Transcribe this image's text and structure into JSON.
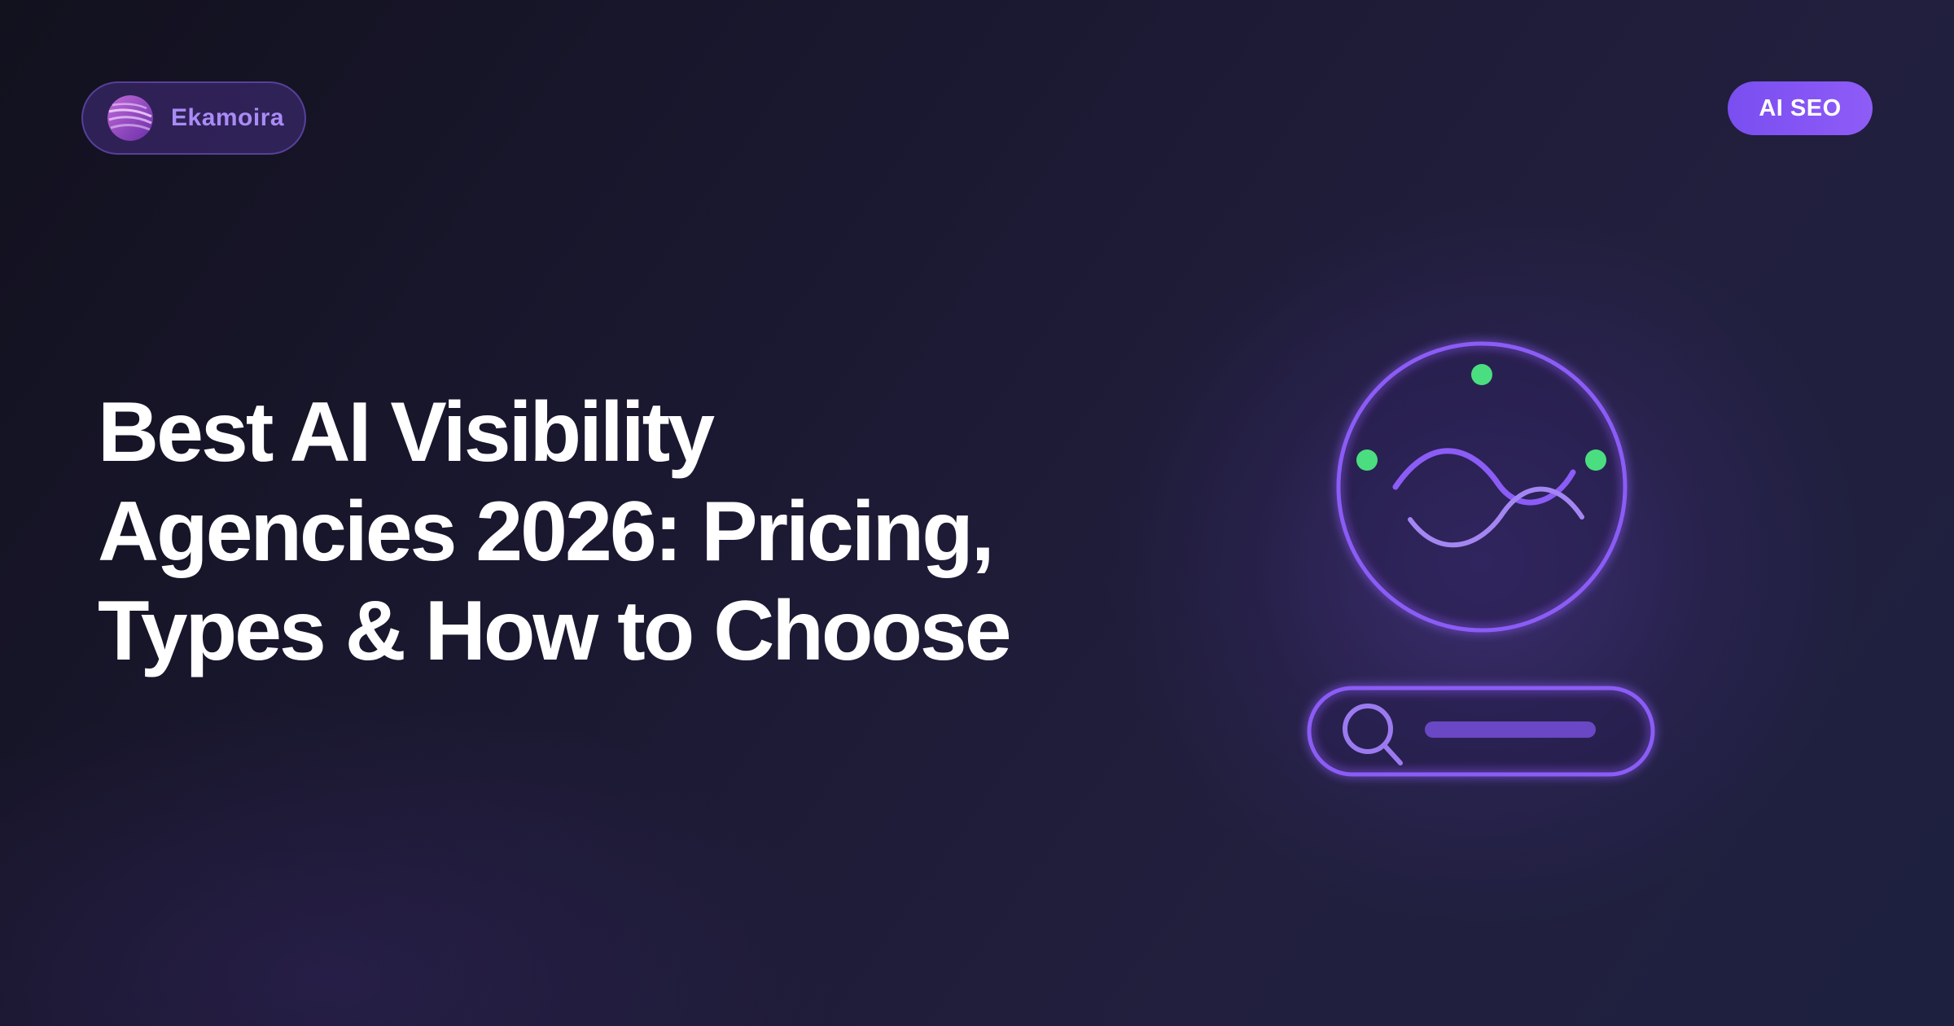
{
  "brand": {
    "logo_icon": "ekamoira-logo-icon",
    "name": "Ekamoira"
  },
  "tag": {
    "label": "AI SEO"
  },
  "headline": {
    "lines": [
      "Best AI Visibility",
      "Agencies 2026: Pricing,",
      "Types & How to Choose"
    ]
  },
  "illustration": {
    "icons": [
      "globe-wave-icon",
      "search-bar-icon",
      "magnifier-icon"
    ]
  },
  "colors": {
    "accent_purple": "#8b5cf6",
    "dot_green": "#4ade80",
    "text_white": "#ffffff",
    "brand_text": "#a98bf5"
  }
}
